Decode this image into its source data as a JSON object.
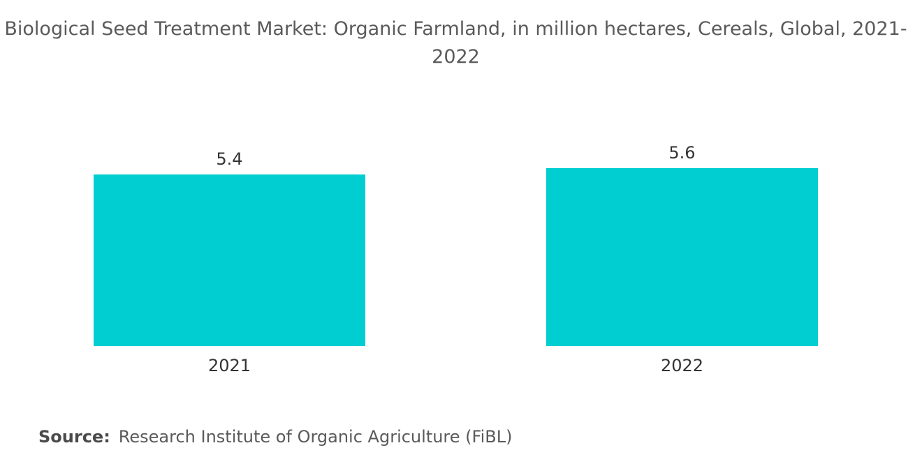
{
  "chart_data": {
    "type": "bar",
    "title": "Biological Seed Treatment Market: Organic Farmland, in million hectares, Cereals, Global, 2021-2022",
    "categories": [
      "2021",
      "2022"
    ],
    "values": [
      5.4,
      5.6
    ],
    "value_labels": [
      "5.4",
      "5.6"
    ],
    "xlabel": "",
    "ylabel": "",
    "ylim": [
      0,
      5.6
    ],
    "grid": false,
    "legend": "none",
    "bar_color": "#00CED1"
  },
  "source": {
    "label": "Source:",
    "text": "Research Institute of Organic Agriculture (FiBL)"
  }
}
